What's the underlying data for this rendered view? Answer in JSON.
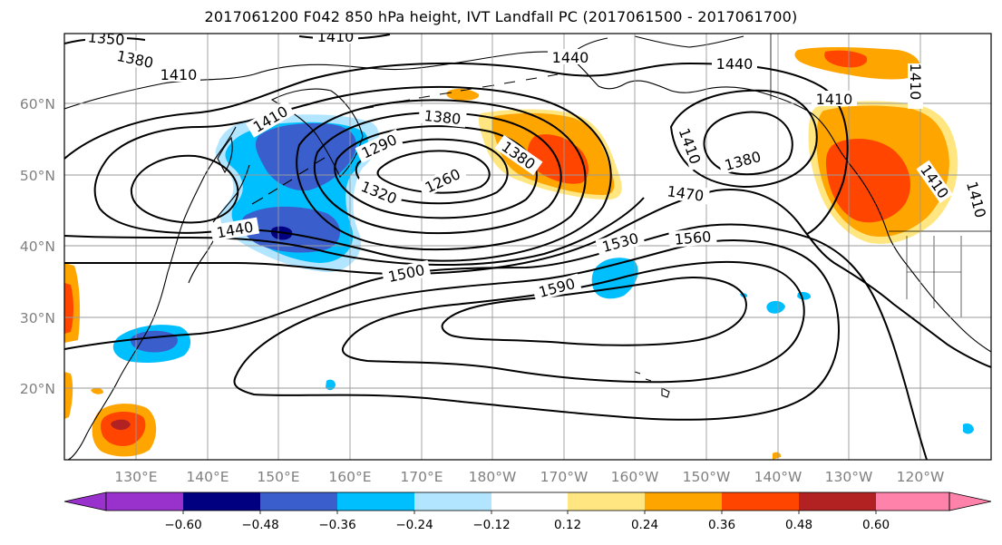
{
  "title": "2017061200 F042 850 hPa height, IVT Landfall PC (2017061500 - 2017061700)",
  "map": {
    "lat_ticks": [
      "60°N",
      "50°N",
      "40°N",
      "30°N",
      "20°N"
    ],
    "lon_ticks": [
      "130°E",
      "140°E",
      "150°E",
      "160°E",
      "170°E",
      "180°W",
      "170°W",
      "160°W",
      "150°W",
      "140°W",
      "130°W",
      "120°W"
    ],
    "contour_labels": [
      "1350",
      "1380",
      "1410",
      "1410",
      "1440",
      "1440",
      "1410",
      "1380",
      "1290",
      "1260",
      "1320",
      "1380",
      "1410",
      "1410",
      "1380",
      "1410",
      "1410",
      "1410",
      "1440",
      "1470",
      "1500",
      "1530",
      "1560",
      "1590"
    ]
  },
  "colorbar": {
    "tick_labels": [
      "−0.60",
      "−0.48",
      "−0.36",
      "−0.24",
      "−0.12",
      "0.12",
      "0.24",
      "0.36",
      "0.48",
      "0.60"
    ],
    "colors": {
      "neg_extend": "#9932CC",
      "lt_-0.60": "#000080",
      "-0.60_-0.48": "#3A5FCD",
      "-0.48_-0.36": "#00BFFF",
      "-0.36_-0.24": "#B2E5FF",
      "neutral": "#FFFFFF",
      "0.12_0.24": "#FFE680",
      "0.24_0.36": "#FFA500",
      "0.36_0.48": "#FF4500",
      "0.48_0.60": "#B22222",
      "pos_extend": "#FF82AB"
    }
  }
}
